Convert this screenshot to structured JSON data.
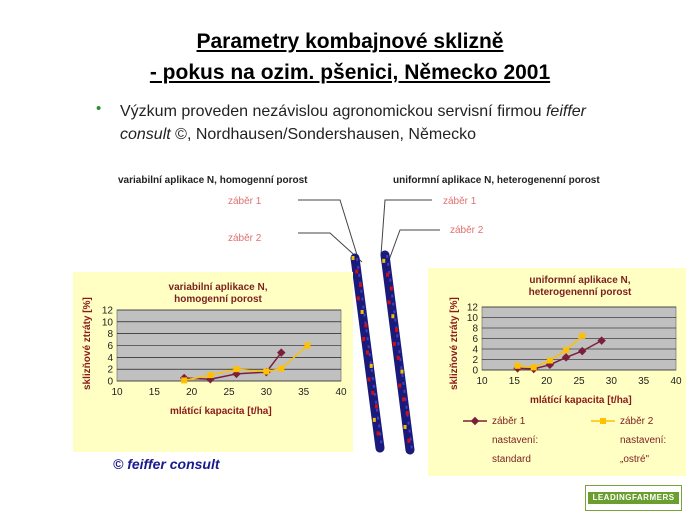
{
  "slide": {
    "title_line1": "Parametry kombajnové sklizně",
    "title_line2": "- pokus na ozim. pšenici, Německo 2001",
    "bullet": "•",
    "body_part1": "Výzkum proveden nezávislou agronomickou servisní firmou ",
    "body_italic": "feiffer consult",
    "body_part2": " ©, Nordhausen/Sondershausen, Německo",
    "copyright": "© feiffer consult",
    "logo_text": "LEADINGFARMERS"
  },
  "photo_labels": {
    "left_header": "variabilní aplikace N, homogenní porost",
    "right_header": "uniformní aplikace N, heterogenenní porost",
    "left_pass1": "záběr 1",
    "left_pass2": "záběr 2",
    "right_pass1": "záběr 1",
    "right_pass2": "záběr 2"
  },
  "colors": {
    "series1": "#7b1f3a",
    "series2": "#ffc000",
    "panel": "#ffffc4",
    "plot_bg": "#c0c0c0",
    "stripe_blue": "#1a1a7a",
    "stripe_red": "#d01010"
  },
  "legend": {
    "s1_line1": "záběr 1",
    "s1_line2": "nastavení:",
    "s1_line3": "standard",
    "s2_line1": "záběr 2",
    "s2_line2": "nastavení:",
    "s2_line3": "„ostré\""
  },
  "chart_data": [
    {
      "type": "line",
      "title": "variabilní aplikace N, homogenní porost",
      "title_line1": "variabilní aplikace N,",
      "title_line2": "homogenní porost",
      "xlabel": "mlátící kapacita [t/ha]",
      "ylabel": "sklizňové ztráty [%]",
      "xlim": [
        10,
        40
      ],
      "ylim": [
        0,
        12
      ],
      "xticks": [
        10,
        15,
        20,
        25,
        30,
        35,
        40
      ],
      "yticks": [
        0,
        2,
        4,
        6,
        8,
        10,
        12
      ],
      "grid": true,
      "series": [
        {
          "x": [
            19,
            22.5,
            26,
            30,
            32
          ],
          "y": [
            0.5,
            0.3,
            1.2,
            1.5,
            4.8
          ]
        },
        {
          "x": [
            19,
            22.5,
            26,
            30,
            32,
            35.5
          ],
          "y": [
            0.1,
            1.0,
            2.0,
            1.6,
            2.1,
            6.0
          ]
        }
      ]
    },
    {
      "type": "line",
      "title": "uniformní aplikace N, heterogenenní porost",
      "title_line1": "uniformní aplikace N,",
      "title_line2": "heterogenenní porost",
      "xlabel": "mlátící kapacita [t/ha]",
      "ylabel": "sklizňové ztráty [%]",
      "xlim": [
        10,
        40
      ],
      "ylim": [
        0,
        12
      ],
      "xticks": [
        10,
        15,
        20,
        25,
        30,
        35,
        40
      ],
      "yticks": [
        0,
        2,
        4,
        6,
        8,
        10,
        12
      ],
      "grid": true,
      "series": [
        {
          "x": [
            15.5,
            18,
            20.5,
            23,
            25.5,
            28.5
          ],
          "y": [
            0.3,
            0.2,
            1.0,
            2.4,
            3.6,
            5.6
          ]
        },
        {
          "x": [
            15.5,
            18,
            20.5,
            23,
            25.5
          ],
          "y": [
            0.8,
            0.5,
            1.8,
            3.8,
            6.5
          ]
        }
      ]
    }
  ]
}
